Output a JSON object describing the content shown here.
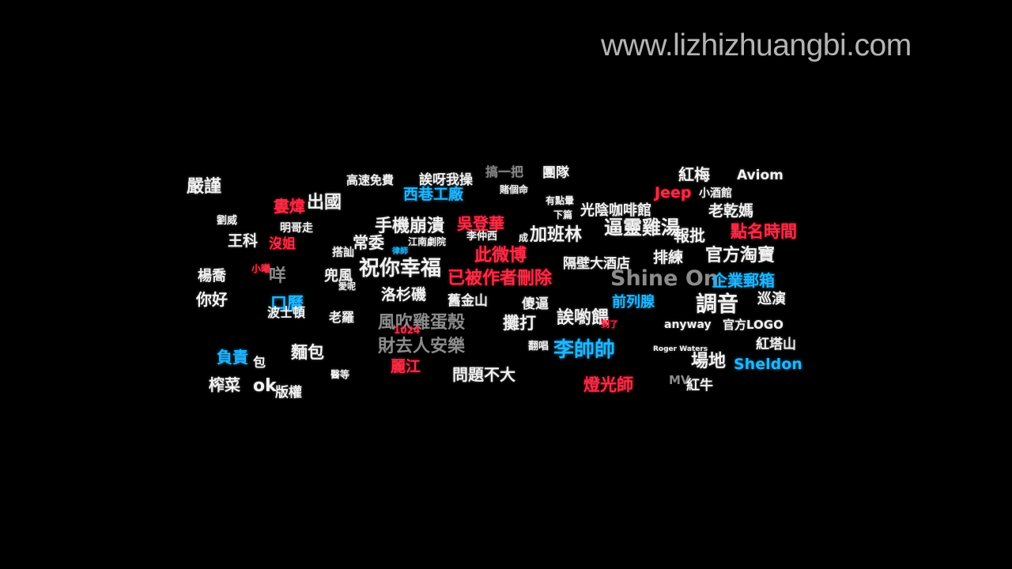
{
  "watermark": "www.lizhizhuangbi.com",
  "colors": {
    "background": "#000000",
    "white": "#f2f2f2",
    "red": "#ff2a45",
    "blue": "#1fb6ff",
    "gray": "#8c8c8c"
  },
  "words": [
    {
      "text": "嚴謹",
      "color": "white",
      "size": 22
    },
    {
      "text": "高速免費",
      "color": "white",
      "size": 15
    },
    {
      "text": "誒呀我操",
      "color": "white",
      "size": 17
    },
    {
      "text": "搞一把",
      "color": "white",
      "size": 16,
      "dim": true
    },
    {
      "text": "團隊",
      "color": "white",
      "size": 17
    },
    {
      "text": "紅梅",
      "color": "white",
      "size": 20
    },
    {
      "text": "Aviom",
      "color": "white",
      "size": 17
    },
    {
      "text": "西巷工廠",
      "color": "blue",
      "size": 19
    },
    {
      "text": "賭個命",
      "color": "white",
      "size": 12
    },
    {
      "text": "Jeep",
      "color": "red",
      "size": 19
    },
    {
      "text": "小酒館",
      "color": "white",
      "size": 14
    },
    {
      "text": "婁煒",
      "color": "red",
      "size": 20
    },
    {
      "text": "出國",
      "color": "white",
      "size": 22
    },
    {
      "text": "有點暈",
      "color": "white",
      "size": 12
    },
    {
      "text": "光陰咖啡館",
      "color": "white",
      "size": 18
    },
    {
      "text": "下篇",
      "color": "white",
      "size": 12
    },
    {
      "text": "老乾媽",
      "color": "white",
      "size": 19
    },
    {
      "text": "劉威",
      "color": "white",
      "size": 13
    },
    {
      "text": "明哥走",
      "color": "white",
      "size": 14
    },
    {
      "text": "手機崩潰",
      "color": "white",
      "size": 22
    },
    {
      "text": "吳登華",
      "color": "red",
      "size": 20
    },
    {
      "text": "逼靈雞湯",
      "color": "white",
      "size": 24
    },
    {
      "text": "點名時間",
      "color": "red",
      "size": 21
    },
    {
      "text": "王科",
      "color": "white",
      "size": 19
    },
    {
      "text": "常委",
      "color": "white",
      "size": 20
    },
    {
      "text": "江南劇院",
      "color": "white",
      "size": 12
    },
    {
      "text": "李仲西",
      "color": "white",
      "size": 13
    },
    {
      "text": "成",
      "color": "white",
      "size": 12
    },
    {
      "text": "加班林",
      "color": "white",
      "size": 22
    },
    {
      "text": "報批",
      "color": "white",
      "size": 20
    },
    {
      "text": "沒姐",
      "color": "red",
      "size": 17
    },
    {
      "text": "搭訕",
      "color": "white",
      "size": 14
    },
    {
      "text": "律師",
      "color": "blue",
      "size": 10
    },
    {
      "text": "此微博",
      "color": "red",
      "size": 22
    },
    {
      "text": "隔壁大酒店",
      "color": "white",
      "size": 17
    },
    {
      "text": "排練",
      "color": "white",
      "size": 19
    },
    {
      "text": "官方淘寶",
      "color": "white",
      "size": 22
    },
    {
      "text": "祝你幸福",
      "color": "white",
      "size": 26
    },
    {
      "text": "小曦",
      "color": "red",
      "size": 12
    },
    {
      "text": "楊喬",
      "color": "white",
      "size": 18
    },
    {
      "text": "咩",
      "color": "gray",
      "size": 22
    },
    {
      "text": "兜風",
      "color": "white",
      "size": 18
    },
    {
      "text": "已被作者刪除",
      "color": "red",
      "size": 22
    },
    {
      "text": "Shine On",
      "color": "gray",
      "size": 27
    },
    {
      "text": "企業郵箱",
      "color": "blue",
      "size": 20
    },
    {
      "text": "愛呢",
      "color": "white",
      "size": 11
    },
    {
      "text": "洛杉磯",
      "color": "white",
      "size": 19
    },
    {
      "text": "你好",
      "color": "white",
      "size": 20
    },
    {
      "text": "舊金山",
      "color": "white",
      "size": 17
    },
    {
      "text": "傻逼",
      "color": "white",
      "size": 17
    },
    {
      "text": "前列腺",
      "color": "blue",
      "size": 18
    },
    {
      "text": "調音",
      "color": "white",
      "size": 27
    },
    {
      "text": "巡演",
      "color": "white",
      "size": 18
    },
    {
      "text": "口曆",
      "color": "blue",
      "size": 21
    },
    {
      "text": "波士頓",
      "color": "white",
      "size": 16
    },
    {
      "text": "老羅",
      "color": "white",
      "size": 16
    },
    {
      "text": "風吹雞蛋殼",
      "color": "gray",
      "size": 22
    },
    {
      "text": "攤打",
      "color": "white",
      "size": 21
    },
    {
      "text": "誒喲餵",
      "color": "white",
      "size": 22
    },
    {
      "text": "到了",
      "color": "red",
      "size": 11
    },
    {
      "text": "anyway",
      "color": "white",
      "size": 14
    },
    {
      "text": "官方LOGO",
      "color": "white",
      "size": 15
    },
    {
      "text": "1024",
      "color": "red",
      "size": 12
    },
    {
      "text": "財去人安樂",
      "color": "gray",
      "size": 22
    },
    {
      "text": "翻唱",
      "color": "white",
      "size": 13
    },
    {
      "text": "李帥帥",
      "color": "blue",
      "size": 26
    },
    {
      "text": "Roger Waters",
      "color": "white",
      "size": 9
    },
    {
      "text": "紅塔山",
      "color": "white",
      "size": 17
    },
    {
      "text": "負責",
      "color": "blue",
      "size": 20
    },
    {
      "text": "包",
      "color": "white",
      "size": 16
    },
    {
      "text": "麵包",
      "color": "white",
      "size": 21
    },
    {
      "text": "麗江",
      "color": "red",
      "size": 19
    },
    {
      "text": "場地",
      "color": "white",
      "size": 22
    },
    {
      "text": "Sheldon",
      "color": "blue",
      "size": 19
    },
    {
      "text": "醫等",
      "color": "white",
      "size": 12
    },
    {
      "text": "問題不大",
      "color": "white",
      "size": 20
    },
    {
      "text": "榨菜",
      "color": "white",
      "size": 20
    },
    {
      "text": "ok",
      "color": "white",
      "size": 22
    },
    {
      "text": "燈光師",
      "color": "red",
      "size": 21
    },
    {
      "text": "MV",
      "color": "gray",
      "size": 15
    },
    {
      "text": "紅牛",
      "color": "white",
      "size": 17
    },
    {
      "text": "版權",
      "color": "white",
      "size": 17
    }
  ]
}
